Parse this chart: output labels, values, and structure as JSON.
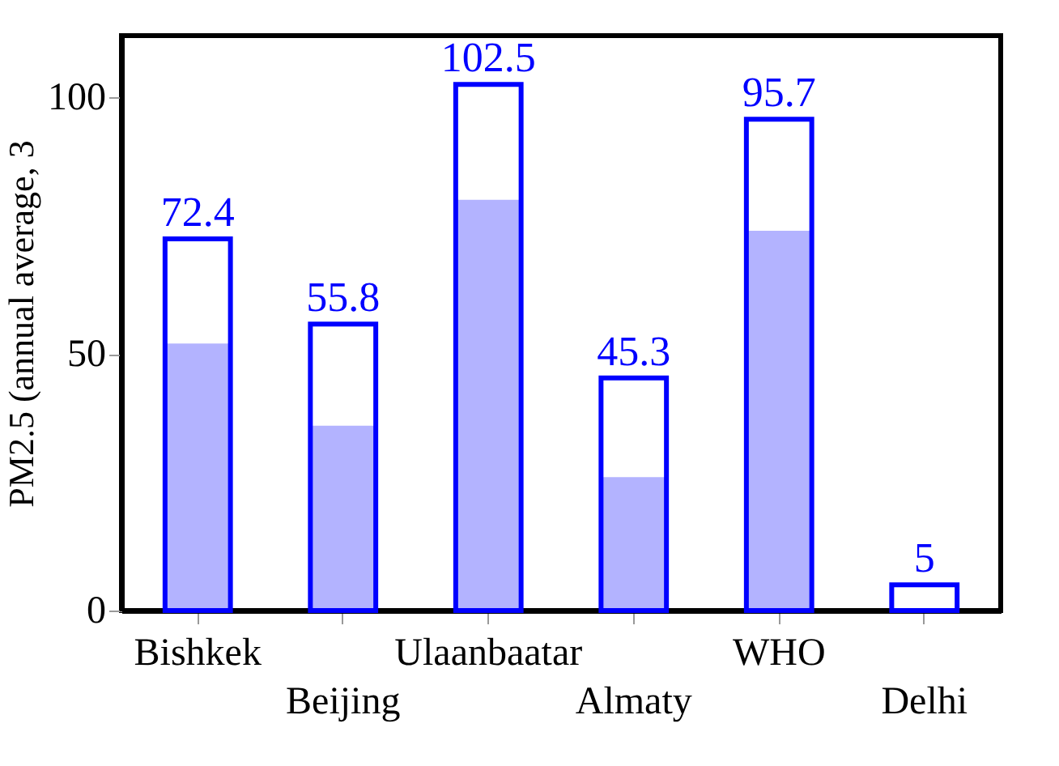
{
  "chart_data": {
    "type": "bar",
    "ylabel": "PM2.5 (annual average, 3",
    "categories": [
      "Bishkek",
      "Beijing",
      "Ulaanbaatar",
      "Almaty",
      "WHO",
      "Delhi"
    ],
    "series": [
      {
        "color": "#b3b3ff",
        "values": [
          52,
          36,
          80,
          26,
          74,
          null
        ]
      },
      {
        "color": "#0000ff",
        "values": [
          72.4,
          55.8,
          102.5,
          45.3,
          95.7,
          5
        ],
        "value_labels": [
          "72.4",
          "55.8",
          "102.5",
          "45.3",
          "95.7",
          "5"
        ]
      }
    ],
    "ylim": [
      0,
      112
    ],
    "yticks": [
      0,
      50,
      100
    ],
    "grid": false
  }
}
